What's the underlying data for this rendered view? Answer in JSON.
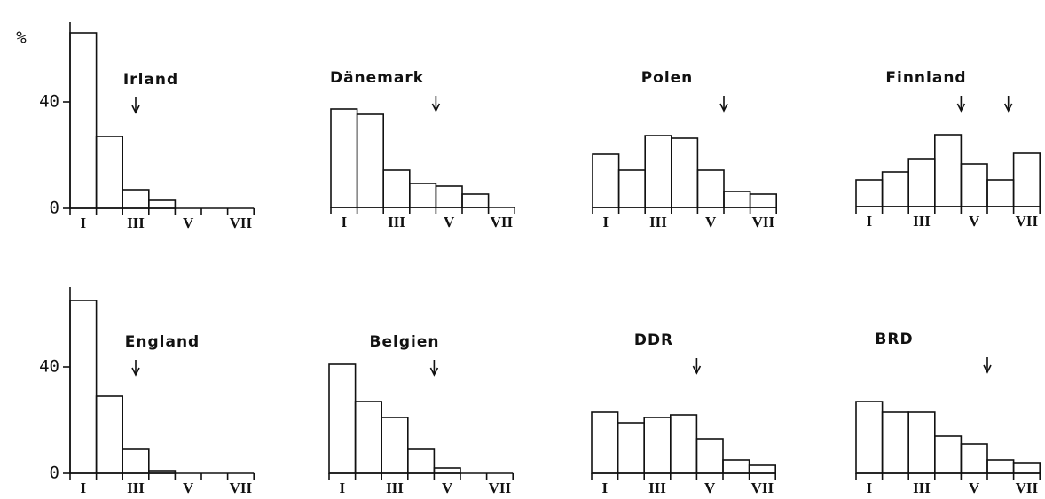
{
  "chart_data": [
    {
      "type": "bar",
      "title": "Irland",
      "ylabel": "%",
      "categories": [
        "I",
        null,
        "III",
        null,
        "V",
        null,
        "VII"
      ],
      "values": [
        66,
        27,
        7,
        3,
        0,
        0,
        0
      ],
      "arrows": [
        3
      ],
      "ylim": [
        0,
        70
      ],
      "yticks": [
        0,
        40
      ]
    },
    {
      "type": "bar",
      "title": "Dänemark",
      "categories": [
        "I",
        null,
        "III",
        null,
        "V",
        null,
        "VII"
      ],
      "values": [
        37,
        35,
        14,
        9,
        8,
        5,
        0
      ],
      "arrows": [
        4.5
      ],
      "ylim": [
        0,
        70
      ]
    },
    {
      "type": "bar",
      "title": "Polen",
      "categories": [
        "I",
        null,
        "III",
        null,
        "V",
        null,
        "VII"
      ],
      "values": [
        20,
        14,
        27,
        26,
        14,
        6,
        5
      ],
      "arrows": [
        5.5
      ],
      "ylim": [
        0,
        70
      ]
    },
    {
      "type": "bar",
      "title": "Finnland",
      "categories": [
        "I",
        null,
        "III",
        null,
        "V",
        null,
        "VII"
      ],
      "values": [
        10,
        13,
        18,
        27,
        16,
        10,
        20
      ],
      "arrows": [
        4.5,
        6.3
      ],
      "ylim": [
        0,
        70
      ]
    },
    {
      "type": "bar",
      "title": "England",
      "categories": [
        "I",
        null,
        "III",
        null,
        "V",
        null,
        "VII"
      ],
      "values": [
        65,
        29,
        9,
        1,
        0,
        0,
        0
      ],
      "arrows": [
        3
      ],
      "ylim": [
        0,
        70
      ],
      "yticks": [
        0,
        40
      ]
    },
    {
      "type": "bar",
      "title": "Belgien",
      "categories": [
        "I",
        null,
        "III",
        null,
        "V",
        null,
        "VII"
      ],
      "values": [
        41,
        27,
        21,
        9,
        2,
        0,
        0
      ],
      "arrows": [
        4.5
      ],
      "ylim": [
        0,
        70
      ]
    },
    {
      "type": "bar",
      "title": "DDR",
      "categories": [
        "I",
        null,
        "III",
        null,
        "V",
        null,
        "VII"
      ],
      "values": [
        23,
        19,
        21,
        22,
        13,
        5,
        3
      ],
      "arrows": [
        4.5
      ],
      "ylim": [
        0,
        70
      ]
    },
    {
      "type": "bar",
      "title": "BRD",
      "categories": [
        "I",
        null,
        "III",
        null,
        "V",
        null,
        "VII"
      ],
      "values": [
        27,
        23,
        23,
        14,
        11,
        5,
        4
      ],
      "arrows": [
        5.5
      ],
      "ylim": [
        0,
        70
      ]
    }
  ]
}
